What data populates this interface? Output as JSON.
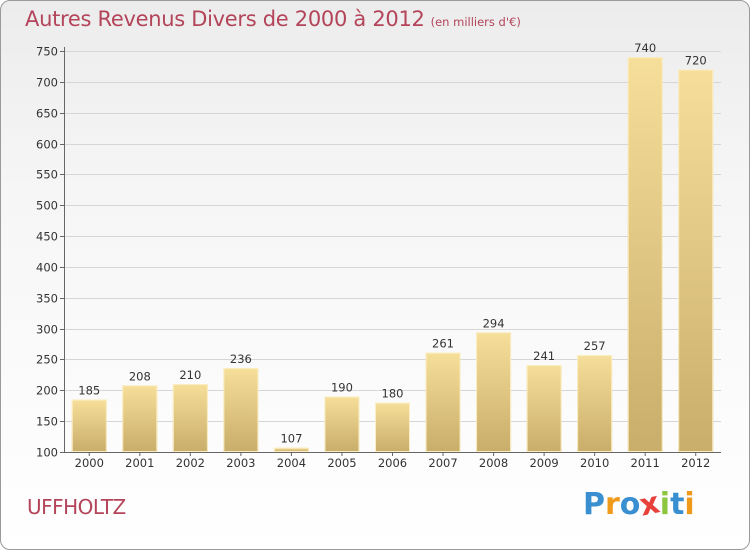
{
  "header": {
    "title": "Autres Revenus Divers de 2000 à 2012",
    "subtitle": "(en milliers d'€)"
  },
  "footer": {
    "location": "UFFHOLTZ",
    "logo_text": "Proxiti",
    "logo_letters": [
      "P",
      "r",
      "o",
      "x",
      "i",
      "t",
      "i"
    ],
    "logo_colors": [
      "#3a8fd0",
      "#f09a1c",
      "#3a8fd0",
      "#e8413c",
      "#8dc63f",
      "#3a8fd0",
      "#f09a1c"
    ]
  },
  "chart_data": {
    "type": "bar",
    "categories": [
      "2000",
      "2001",
      "2002",
      "2003",
      "2004",
      "2005",
      "2006",
      "2007",
      "2008",
      "2009",
      "2010",
      "2011",
      "2012"
    ],
    "values": [
      185,
      208,
      210,
      236,
      107,
      190,
      180,
      261,
      294,
      241,
      257,
      740,
      720
    ],
    "ylim": [
      100,
      750
    ],
    "yticks": [
      100,
      150,
      200,
      250,
      300,
      350,
      400,
      450,
      500,
      550,
      600,
      650,
      700,
      750
    ],
    "grid": true,
    "bar_color_light": "#f6df9a",
    "bar_color_dark": "#c9ad6a",
    "grid_color": "#d6d6d6",
    "text_color": "#333333"
  }
}
